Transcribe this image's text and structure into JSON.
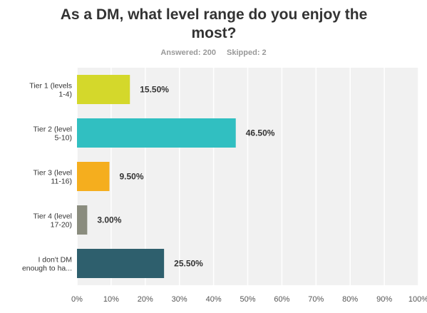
{
  "title_line1": "As a DM, what level range do you enjoy the",
  "title_line2": "most?",
  "answered": "Answered: 200",
  "skipped": "Skipped: 2",
  "chart_data": {
    "type": "bar",
    "orientation": "horizontal",
    "categories": [
      [
        "Tier 1 (levels",
        "1-4)"
      ],
      [
        "Tier 2 (level",
        "5-10)"
      ],
      [
        "Tier 3 (level",
        "11-16)"
      ],
      [
        "Tier 4 (level",
        "17-20)"
      ],
      [
        "I don't DM",
        "enough to ha..."
      ]
    ],
    "values": [
      15.5,
      46.5,
      9.5,
      3.0,
      25.5
    ],
    "value_labels": [
      "15.50%",
      "46.50%",
      "9.50%",
      "3.00%",
      "25.50%"
    ],
    "colors": [
      "#d4d82b",
      "#31bfc1",
      "#f5ae1e",
      "#8a8c7e",
      "#2e5f6d"
    ],
    "xlim": [
      0,
      100
    ],
    "xticks": [
      "0%",
      "10%",
      "20%",
      "30%",
      "40%",
      "50%",
      "60%",
      "70%",
      "80%",
      "90%",
      "100%"
    ],
    "grid": true,
    "background": "#f1f1f1"
  }
}
